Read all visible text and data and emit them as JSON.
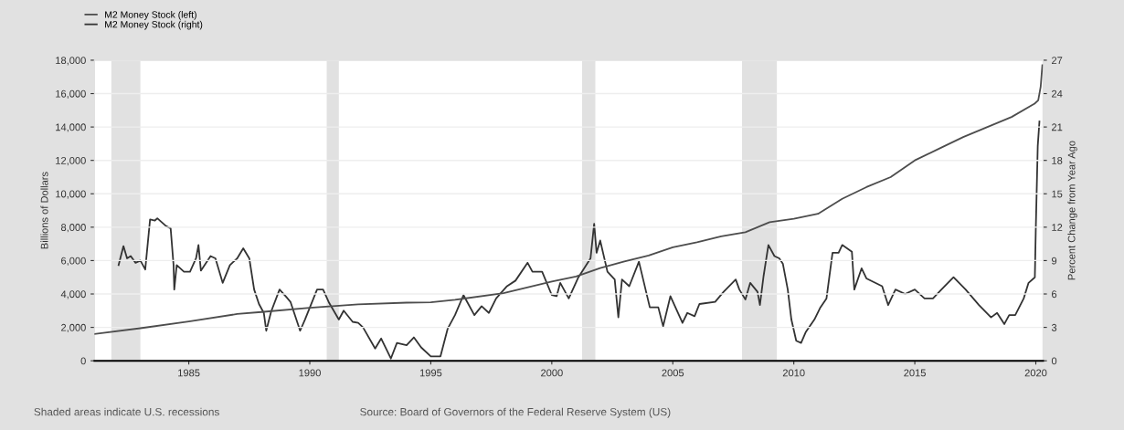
{
  "chart_data": {
    "type": "line",
    "ylabel": "Billions of Dollars",
    "y2label": "Percent Change from Year Ago",
    "annotations": [
      "Shaded areas indicate U.S. recessions",
      "Source: Board of Governors of the Federal Reserve System (US)"
    ],
    "xlim": [
      1981.1,
      2020.3
    ],
    "xticks": [
      1985,
      1990,
      1995,
      2000,
      2005,
      2010,
      2015,
      2020
    ],
    "ylim": [
      0,
      18000
    ],
    "yticks": [
      0,
      {
        "value": 2000,
        "label": "2,000"
      },
      {
        "value": 4000,
        "label": "4,000"
      },
      {
        "value": 6000,
        "label": "6,000"
      },
      {
        "value": 8000,
        "label": "8,000"
      },
      {
        "value": 10000,
        "label": "10,000"
      },
      {
        "value": 12000,
        "label": "12,000"
      },
      {
        "value": 14000,
        "label": "14,000"
      },
      {
        "value": 16000,
        "label": "16,000"
      },
      {
        "value": 18000,
        "label": "18,000"
      }
    ],
    "y2lim": [
      0,
      27
    ],
    "y2ticks": [
      0,
      3,
      6,
      9,
      12,
      15,
      18,
      21,
      24,
      27
    ],
    "grid": "y",
    "legend": "top left",
    "line_style": "solid",
    "bands": [
      {
        "axis": "x",
        "from": 1981.8,
        "to": 1983.0,
        "color": "#e1e1e1"
      },
      {
        "axis": "x",
        "from": 1990.7,
        "to": 1991.2,
        "color": "#e1e1e1"
      },
      {
        "axis": "x",
        "from": 2001.25,
        "to": 2001.8,
        "color": "#e1e1e1"
      },
      {
        "axis": "x",
        "from": 2007.86,
        "to": 2009.3,
        "color": "#e1e1e1"
      }
    ],
    "series": [
      {
        "name": "M2 Money Stock (left)",
        "color": "#4d4d4d",
        "x": [
          1981.1,
          1983.0,
          1985.0,
          1987.0,
          1988.0,
          1990.0,
          1992.0,
          1994.0,
          1995.0,
          1996.0,
          1998.0,
          2000.0,
          2001.0,
          2002.0,
          2003.0,
          2004.0,
          2005.0,
          2006.0,
          2007.0,
          2008.0,
          2009.0,
          2010.0,
          2011.0,
          2012.0,
          2013.0,
          2014.0,
          2015.0,
          2016.0,
          2017.0,
          2018.0,
          2019.0,
          2019.95,
          2020.1,
          2020.2,
          2020.27
        ],
        "values": [
          1600,
          1950,
          2350,
          2800,
          2920,
          3170,
          3380,
          3480,
          3500,
          3650,
          4050,
          4750,
          5050,
          5550,
          5950,
          6300,
          6800,
          7100,
          7450,
          7700,
          8300,
          8500,
          8800,
          9700,
          10400,
          11000,
          12000,
          12700,
          13400,
          14000,
          14600,
          15400,
          15600,
          16400,
          17700
        ]
      },
      {
        "name": "M2 Money Stock (right)",
        "color": "#333333",
        "axis": "y2",
        "x": [
          1982.1,
          1982.3,
          1982.45,
          1982.6,
          1982.8,
          1983.0,
          1983.2,
          1983.4,
          1983.6,
          1983.7,
          1984.06,
          1984.25,
          1984.37,
          1984.4,
          1984.5,
          1984.8,
          1985.05,
          1985.3,
          1985.4,
          1985.5,
          1985.9,
          1986.1,
          1986.4,
          1986.7,
          1987.0,
          1987.25,
          1987.5,
          1987.7,
          1987.9,
          1988.1,
          1988.2,
          1988.4,
          1988.75,
          1989.0,
          1989.2,
          1989.6,
          1989.8,
          1990.3,
          1990.55,
          1990.8,
          1991.2,
          1991.4,
          1991.77,
          1992.0,
          1992.2,
          1992.7,
          1992.95,
          1993.35,
          1993.6,
          1994.0,
          1994.3,
          1994.6,
          1995.0,
          1995.4,
          1995.7,
          1996.0,
          1996.35,
          1996.8,
          1997.1,
          1997.4,
          1997.7,
          1998.15,
          1998.5,
          1999.0,
          1999.2,
          1999.6,
          2000.0,
          2000.2,
          2000.35,
          2000.7,
          2001.1,
          2001.6,
          2001.75,
          2001.85,
          2002.0,
          2002.3,
          2002.6,
          2002.75,
          2002.9,
          2003.2,
          2003.6,
          2004.05,
          2004.4,
          2004.6,
          2004.9,
          2005.4,
          2005.6,
          2005.9,
          2006.1,
          2006.75,
          2007.1,
          2007.6,
          2007.75,
          2008.0,
          2008.2,
          2008.5,
          2008.6,
          2008.75,
          2008.95,
          2009.2,
          2009.4,
          2009.55,
          2009.75,
          2009.9,
          2010.1,
          2010.3,
          2010.5,
          2010.85,
          2011.1,
          2011.35,
          2011.6,
          2011.85,
          2012.0,
          2012.4,
          2012.5,
          2012.8,
          2013.0,
          2013.65,
          2013.9,
          2014.2,
          2014.6,
          2015.0,
          2015.4,
          2015.75,
          2016.1,
          2016.6,
          2017.1,
          2017.65,
          2018.15,
          2018.4,
          2018.7,
          2018.9,
          2019.15,
          2019.5,
          2019.7,
          2019.96,
          2020.0,
          2020.08,
          2020.15
        ],
        "values": [
          8.6,
          10.3,
          9.2,
          9.4,
          8.8,
          9.0,
          8.2,
          12.7,
          12.6,
          12.8,
          12.1,
          11.9,
          8.6,
          6.4,
          8.6,
          8.0,
          8.0,
          9.2,
          10.4,
          8.1,
          9.4,
          9.2,
          7.0,
          8.6,
          9.2,
          10.1,
          9.2,
          6.4,
          5.1,
          4.3,
          2.7,
          4.4,
          6.4,
          5.8,
          5.3,
          2.7,
          3.7,
          6.4,
          6.4,
          5.2,
          3.7,
          4.5,
          3.5,
          3.4,
          3.0,
          1.1,
          2.0,
          0.2,
          1.6,
          1.4,
          2.1,
          1.2,
          0.4,
          0.4,
          2.9,
          4.1,
          5.9,
          4.1,
          4.9,
          4.3,
          5.6,
          6.7,
          7.2,
          8.8,
          8.0,
          8.0,
          5.9,
          5.8,
          7.0,
          5.6,
          7.5,
          9.2,
          12.3,
          9.7,
          10.8,
          8.0,
          7.3,
          3.9,
          7.3,
          6.7,
          8.9,
          4.8,
          4.8,
          3.1,
          5.8,
          3.4,
          4.3,
          4.0,
          5.1,
          5.3,
          6.2,
          7.3,
          6.4,
          5.5,
          7.0,
          6.2,
          5.0,
          7.6,
          10.4,
          9.4,
          9.2,
          8.7,
          6.4,
          3.7,
          1.8,
          1.6,
          2.6,
          3.7,
          4.8,
          5.6,
          9.7,
          9.7,
          10.4,
          9.8,
          6.4,
          8.3,
          7.4,
          6.7,
          5.0,
          6.4,
          6.0,
          6.4,
          5.6,
          5.6,
          6.4,
          7.5,
          6.4,
          5.0,
          3.9,
          4.3,
          3.3,
          4.1,
          4.1,
          5.6,
          7.0,
          7.5,
          11.9,
          19.3,
          21.5
        ]
      }
    ]
  }
}
